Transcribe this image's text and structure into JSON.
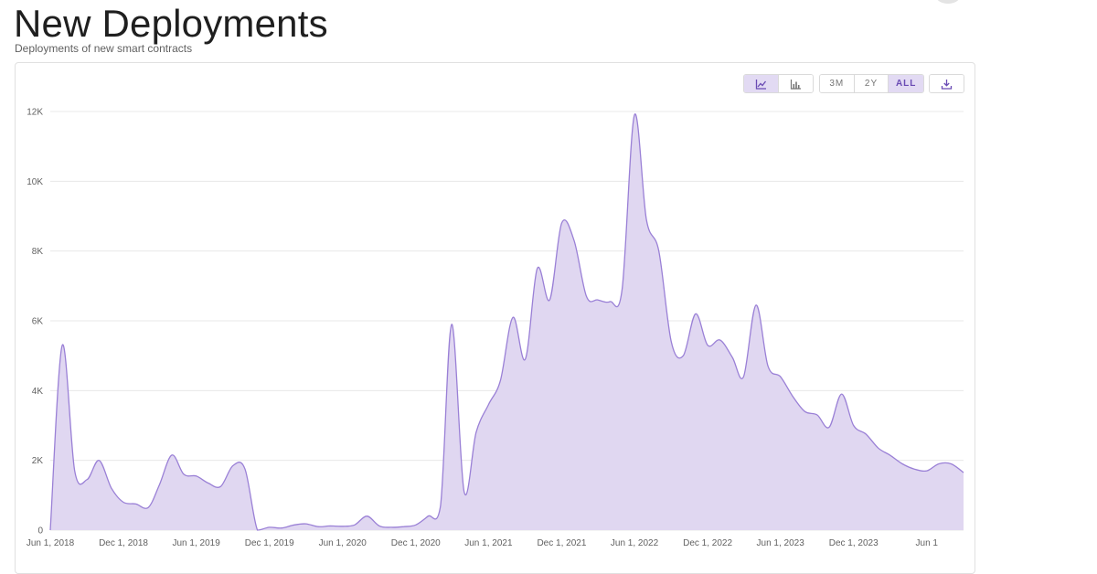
{
  "header": {
    "title": "New Deployments",
    "subtitle": "Deployments of new smart contracts"
  },
  "toolbar": {
    "chart_types": [
      {
        "icon": "line-chart-icon",
        "active": true
      },
      {
        "icon": "bar-chart-icon",
        "active": false
      }
    ],
    "ranges": [
      {
        "label": "3M",
        "active": false
      },
      {
        "label": "2Y",
        "active": false
      },
      {
        "label": "ALL",
        "active": true
      }
    ],
    "download_icon": "download-icon"
  },
  "colors": {
    "line": "#9a80d6",
    "fill": "#e0d7f1",
    "grid": "#e8e8e8",
    "accent": "#6a4bb4"
  },
  "chart_data": {
    "type": "area",
    "title": "",
    "xlabel": "",
    "ylabel": "",
    "grid": true,
    "legend": "none",
    "ylim": [
      0,
      12000
    ],
    "y_ticks": [
      0,
      2000,
      4000,
      6000,
      8000,
      10000,
      12000
    ],
    "y_tick_labels": [
      "0",
      "2K",
      "4K",
      "6K",
      "8K",
      "10K",
      "12K"
    ],
    "x_start": "2018-06-01",
    "x_end": "2024-09-01",
    "x_ticks": [
      "2018-06-01",
      "2018-12-01",
      "2019-06-01",
      "2019-12-01",
      "2020-06-01",
      "2020-12-01",
      "2021-06-01",
      "2021-12-01",
      "2022-06-01",
      "2022-12-01",
      "2023-06-01",
      "2023-12-01",
      "2024-06-01"
    ],
    "x_tick_labels": [
      "Jun 1, 2018",
      "Dec 1, 2018",
      "Jun 1, 2019",
      "Dec 1, 2019",
      "Jun 1, 2020",
      "Dec 1, 2020",
      "Jun 1, 2021",
      "Dec 1, 2021",
      "Jun 1, 2022",
      "Dec 1, 2022",
      "Jun 1, 2023",
      "Dec 1, 2023",
      "Jun 1"
    ],
    "series": [
      {
        "x": [
          "2018-06-01",
          "2018-07-01",
          "2018-08-01",
          "2018-09-01",
          "2018-10-01",
          "2018-11-01",
          "2018-12-01",
          "2019-01-01",
          "2019-02-01",
          "2019-03-01",
          "2019-04-01",
          "2019-05-01",
          "2019-06-01",
          "2019-07-01",
          "2019-08-01",
          "2019-09-01",
          "2019-10-01",
          "2019-11-01",
          "2019-12-01",
          "2020-01-01",
          "2020-02-01",
          "2020-03-01",
          "2020-04-01",
          "2020-05-01",
          "2020-06-01",
          "2020-07-01",
          "2020-08-01",
          "2020-09-01",
          "2020-10-01",
          "2020-11-01",
          "2020-12-01",
          "2021-01-01",
          "2021-02-01",
          "2021-03-01",
          "2021-04-01",
          "2021-05-01",
          "2021-06-01",
          "2021-07-01",
          "2021-08-01",
          "2021-09-01",
          "2021-10-01",
          "2021-11-01",
          "2021-12-01",
          "2022-01-01",
          "2022-02-01",
          "2022-03-01",
          "2022-04-01",
          "2022-05-01",
          "2022-06-01",
          "2022-07-01",
          "2022-08-01",
          "2022-09-01",
          "2022-10-01",
          "2022-11-01",
          "2022-12-01",
          "2023-01-01",
          "2023-02-01",
          "2023-03-01",
          "2023-04-01",
          "2023-05-01",
          "2023-06-01",
          "2023-07-01",
          "2023-08-01",
          "2023-09-01",
          "2023-10-01",
          "2023-11-01",
          "2023-12-01",
          "2024-01-01",
          "2024-02-01",
          "2024-03-01",
          "2024-04-01",
          "2024-05-01",
          "2024-06-01",
          "2024-07-01",
          "2024-08-01",
          "2024-09-01"
        ],
        "values": [
          0,
          5300,
          1700,
          1450,
          2000,
          1200,
          800,
          750,
          650,
          1300,
          2150,
          1600,
          1550,
          1350,
          1250,
          1850,
          1750,
          0,
          80,
          60,
          150,
          180,
          100,
          120,
          110,
          150,
          400,
          120,
          80,
          100,
          150,
          400,
          700,
          5900,
          1100,
          2800,
          3600,
          4300,
          6100,
          4900,
          7500,
          6600,
          8800,
          8300,
          6700,
          6600,
          6550,
          6900,
          11900,
          8900,
          8000,
          5400,
          5000,
          6200,
          5300,
          5450,
          4950,
          4400,
          6450,
          4700,
          4400,
          3850,
          3400,
          3300,
          2950,
          3900,
          3000,
          2750,
          2350,
          2150,
          1900,
          1750,
          1700,
          1900,
          1900,
          1650
        ]
      }
    ]
  }
}
